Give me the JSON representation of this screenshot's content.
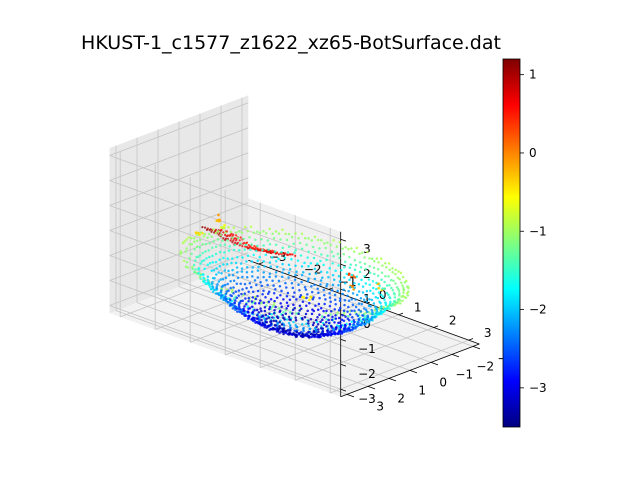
{
  "chart_data": {
    "type": "scatter",
    "projection": "3d",
    "title": "HKUST-1_c1577_z1622_xz65-BotSurface.dat",
    "xlabel": "",
    "ylabel": "",
    "zlabel": "",
    "xlim": [
      -3,
      3
    ],
    "ylim": [
      -3,
      3
    ],
    "zlim": [
      -3,
      3
    ],
    "x_ticks": [
      "−3",
      "−2",
      "−1",
      "0",
      "1",
      "2",
      "3"
    ],
    "y_ticks": [
      "−3",
      "−2",
      "−1",
      "0",
      "1",
      "2",
      "3"
    ],
    "z_ticks": [
      "−3",
      "−2",
      "−1",
      "0",
      "1",
      "2",
      "3"
    ],
    "grid": true,
    "colormap": "jet",
    "color_by": "z",
    "colorbar": {
      "range": [
        -3.5,
        1.2
      ],
      "ticks": [
        "1",
        "0",
        "−1",
        "−2",
        "−3"
      ]
    },
    "point_groups": [
      {
        "shape": "bowl",
        "x_range": [
          -2.8,
          2.8
        ],
        "y_range": [
          -2.8,
          2.8
        ],
        "z_range": [
          -3.5,
          -1.0
        ]
      },
      {
        "shape": "patch",
        "x_range": [
          -1.0,
          1.0
        ],
        "y_range": [
          1.5,
          2.8
        ],
        "z_range": [
          0.3,
          1.2
        ]
      },
      {
        "shape": "rim-spots",
        "x_range": [
          -2.6,
          2.6
        ],
        "y_range": [
          -2.6,
          2.6
        ],
        "z_range": [
          -1.0,
          0.4
        ]
      }
    ]
  }
}
